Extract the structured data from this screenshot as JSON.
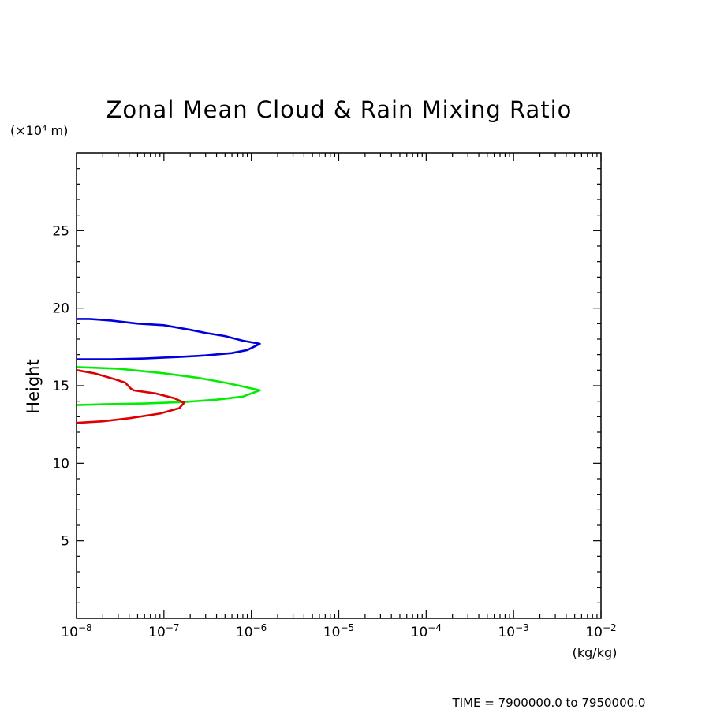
{
  "chart_data": {
    "type": "line",
    "title": "Zonal Mean Cloud & Rain Mixing Ratio",
    "ylabel": "Height",
    "yunit_label": "(×10⁴ m)",
    "xunit_label": "(kg/kg)",
    "footer": "TIME = 7900000.0 to 7950000.0",
    "x_scale": "log",
    "xlim": [
      1e-08,
      0.01
    ],
    "ylim": [
      0,
      30
    ],
    "x_ticks": [
      {
        "base": "10",
        "exp": "−8",
        "value": 1e-08
      },
      {
        "base": "10",
        "exp": "−7",
        "value": 1e-07
      },
      {
        "base": "10",
        "exp": "−6",
        "value": 1e-06
      },
      {
        "base": "10",
        "exp": "−5",
        "value": 1e-05
      },
      {
        "base": "10",
        "exp": "−4",
        "value": 0.0001
      },
      {
        "base": "10",
        "exp": "−3",
        "value": 0.001
      },
      {
        "base": "10",
        "exp": "−2",
        "value": 0.01
      }
    ],
    "y_ticks": [
      {
        "label": "5",
        "value": 5
      },
      {
        "label": "10",
        "value": 10
      },
      {
        "label": "15",
        "value": 15
      },
      {
        "label": "20",
        "value": 20
      },
      {
        "label": "25",
        "value": 25
      }
    ],
    "grid": false,
    "series": [
      {
        "color": "#0000dd",
        "x": [
          1e-08,
          1.4e-08,
          2.5e-08,
          5e-08,
          1e-07,
          2e-07,
          3e-07,
          5e-07,
          8e-07,
          1.25e-06,
          9e-07,
          6e-07,
          3e-07,
          1.5e-07,
          6e-08,
          2.5e-08,
          1e-08
        ],
        "y": [
          19.3,
          19.3,
          19.2,
          19.0,
          18.9,
          18.6,
          18.4,
          18.2,
          17.9,
          17.7,
          17.3,
          17.1,
          16.95,
          16.85,
          16.75,
          16.7,
          16.7
        ]
      },
      {
        "color": "#00ee00",
        "x": [
          1e-08,
          3e-08,
          1e-07,
          2.5e-07,
          5e-07,
          8e-07,
          1.25e-06,
          8e-07,
          4e-07,
          1.7e-07,
          6e-08,
          2e-08,
          1e-08
        ],
        "y": [
          16.2,
          16.1,
          15.8,
          15.5,
          15.2,
          14.95,
          14.7,
          14.3,
          14.1,
          13.95,
          13.85,
          13.8,
          13.75
        ]
      },
      {
        "color": "#dd0000",
        "x": [
          1e-08,
          1.6e-08,
          2.8e-08,
          3.6e-08,
          4.2e-08,
          4.5e-08,
          8e-08,
          1.3e-07,
          1.7e-07,
          1.5e-07,
          9e-08,
          4e-08,
          2e-08,
          1e-08
        ],
        "y": [
          16.0,
          15.8,
          15.4,
          15.2,
          14.8,
          14.7,
          14.5,
          14.2,
          13.9,
          13.55,
          13.2,
          12.9,
          12.7,
          12.6
        ]
      }
    ]
  }
}
